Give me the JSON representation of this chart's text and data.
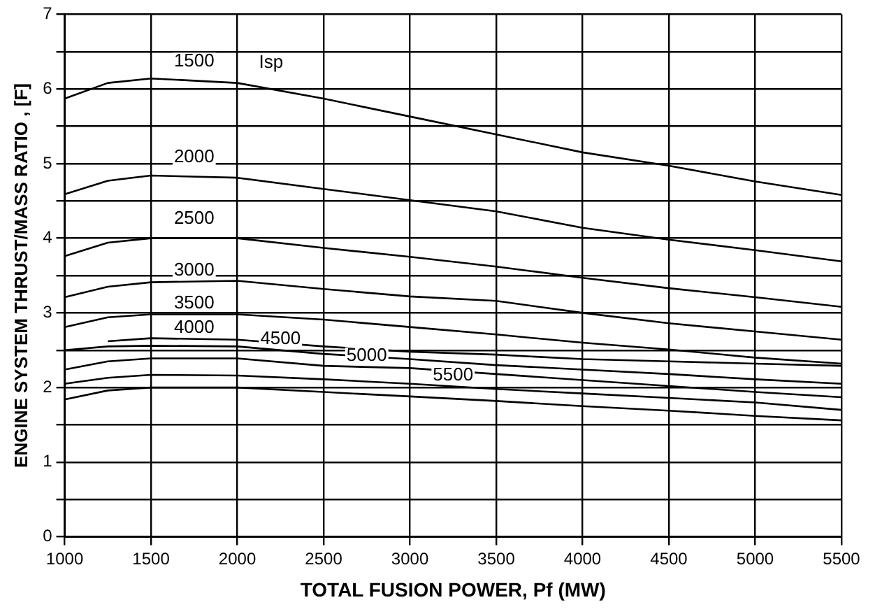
{
  "chart_data": {
    "type": "line",
    "xlabel": "TOTAL FUSION POWER, Pf (MW)",
    "ylabel": "ENGINE SYSTEM THRUST/MASS RATIO , [F]",
    "x": [
      1000,
      1250,
      1500,
      2000,
      2500,
      3000,
      3500,
      4000,
      4500,
      5000,
      5500
    ],
    "series": [
      {
        "name": "1500",
        "color": "#000000",
        "values": [
          5.87,
          6.08,
          6.14,
          6.08,
          5.87,
          5.63,
          5.39,
          5.15,
          4.97,
          4.76,
          4.58
        ]
      },
      {
        "name": "2000",
        "color": "#000000",
        "values": [
          4.59,
          4.77,
          4.84,
          4.81,
          4.66,
          4.51,
          4.36,
          4.14,
          3.98,
          3.84,
          3.69
        ]
      },
      {
        "name": "2500",
        "color": "#000000",
        "values": [
          3.76,
          3.94,
          4.0,
          4.0,
          3.87,
          3.75,
          3.62,
          3.47,
          3.33,
          3.21,
          3.08
        ]
      },
      {
        "name": "3000",
        "color": "#000000",
        "values": [
          3.21,
          3.35,
          3.41,
          3.43,
          3.32,
          3.22,
          3.16,
          3.0,
          2.86,
          2.75,
          2.64
        ]
      },
      {
        "name": "3500",
        "color": "#000000",
        "values": [
          2.81,
          2.94,
          2.98,
          2.98,
          2.91,
          2.81,
          2.71,
          2.6,
          2.51,
          2.4,
          2.32
        ]
      },
      {
        "name": "4000",
        "color": "#000000",
        "values": [
          null,
          2.62,
          2.66,
          2.64,
          2.55,
          2.48,
          2.44,
          2.38,
          2.35,
          2.32,
          2.29
        ]
      },
      {
        "name": "4500",
        "color": "#000000",
        "values": [
          2.5,
          2.55,
          2.56,
          2.55,
          2.45,
          2.38,
          2.3,
          2.24,
          2.18,
          2.11,
          2.05
        ]
      },
      {
        "name": "5000",
        "color": "#000000",
        "values": [
          2.24,
          2.35,
          2.39,
          2.39,
          2.29,
          2.26,
          2.18,
          2.1,
          2.02,
          1.94,
          1.87
        ]
      },
      {
        "name": "5500",
        "color": "#000000",
        "values": [
          2.05,
          2.13,
          2.17,
          2.16,
          2.11,
          2.05,
          1.98,
          1.92,
          1.86,
          1.8,
          1.7
        ]
      },
      {
        "color": "#000000",
        "values": [
          1.84,
          1.96,
          2.0,
          2.0,
          1.94,
          1.88,
          1.82,
          1.75,
          1.69,
          1.62,
          1.56
        ]
      }
    ],
    "annotations": [
      "Isp"
    ],
    "xlim": [
      1000,
      5500
    ],
    "xticks": [
      1000,
      1500,
      2000,
      2500,
      3000,
      3500,
      4000,
      4500,
      5000,
      5500
    ],
    "ylim": [
      0,
      7
    ],
    "yticks": [
      0,
      {
        "value": 0.5,
        "label": null
      },
      1,
      {
        "value": 1.5,
        "label": null
      },
      2,
      {
        "value": 2.5,
        "label": null
      },
      3,
      {
        "value": 3.5,
        "label": null
      },
      4,
      {
        "value": 4.5,
        "label": null
      },
      5,
      {
        "value": 5.5,
        "label": null
      },
      6,
      {
        "value": 6.5,
        "label": null
      },
      7
    ],
    "grid": true,
    "legend": false,
    "marker": "none",
    "line_style": "solid"
  }
}
